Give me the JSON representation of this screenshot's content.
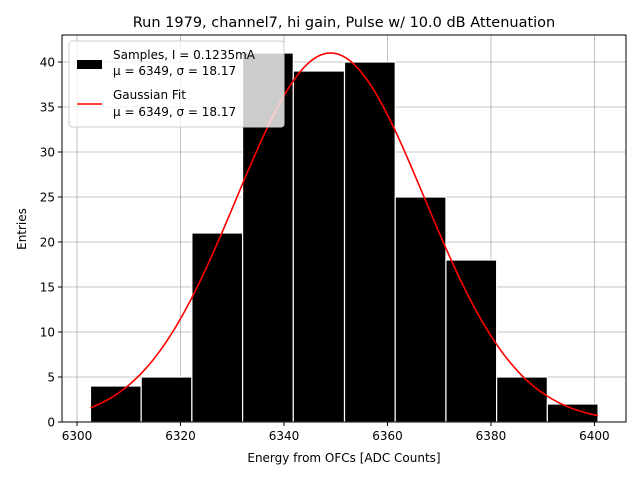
{
  "chart_data": {
    "type": "bar",
    "title": "Run 1979, channel7, hi gain, Pulse w/ 10.0 dB Attenuation",
    "xlabel": "Energy from OFCs [ADC Counts]",
    "ylabel": "Entries",
    "xlim": [
      6297.1,
      6406.1
    ],
    "ylim": [
      0,
      43
    ],
    "grid": true,
    "xticks": [
      6300,
      6320,
      6340,
      6360,
      6380,
      6400
    ],
    "yticks": [
      0,
      5,
      10,
      15,
      20,
      25,
      30,
      35,
      40
    ],
    "bins": [
      {
        "left": 6302.6,
        "right": 6312.4,
        "count": 4
      },
      {
        "left": 6312.4,
        "right": 6322.2,
        "count": 5
      },
      {
        "left": 6322.2,
        "right": 6332.0,
        "count": 21
      },
      {
        "left": 6332.0,
        "right": 6341.8,
        "count": 41
      },
      {
        "left": 6341.8,
        "right": 6351.7,
        "count": 39
      },
      {
        "left": 6351.7,
        "right": 6361.5,
        "count": 40
      },
      {
        "left": 6361.5,
        "right": 6371.3,
        "count": 25
      },
      {
        "left": 6371.3,
        "right": 6381.1,
        "count": 18
      },
      {
        "left": 6381.1,
        "right": 6390.9,
        "count": 5
      },
      {
        "left": 6390.9,
        "right": 6400.7,
        "count": 2
      }
    ],
    "fit": {
      "name": "Gaussian Fit",
      "mu": 6349,
      "sigma": 18.17,
      "amplitude": 41,
      "x_range": [
        6302.6,
        6400.7
      ],
      "color": "#ff0000"
    },
    "legend": {
      "position": "top-left",
      "entries": [
        {
          "line1": "Samples, I = 0.1235mA",
          "line2": "μ = 6349, σ = 18.17",
          "kind": "patch",
          "color": "#000000"
        },
        {
          "line1": "Gaussian Fit",
          "line2": "μ = 6349, σ = 18.17",
          "kind": "line",
          "color": "#ff0000"
        }
      ]
    },
    "bar_color": "#000000",
    "bar_edge_color": "#ffffff"
  }
}
